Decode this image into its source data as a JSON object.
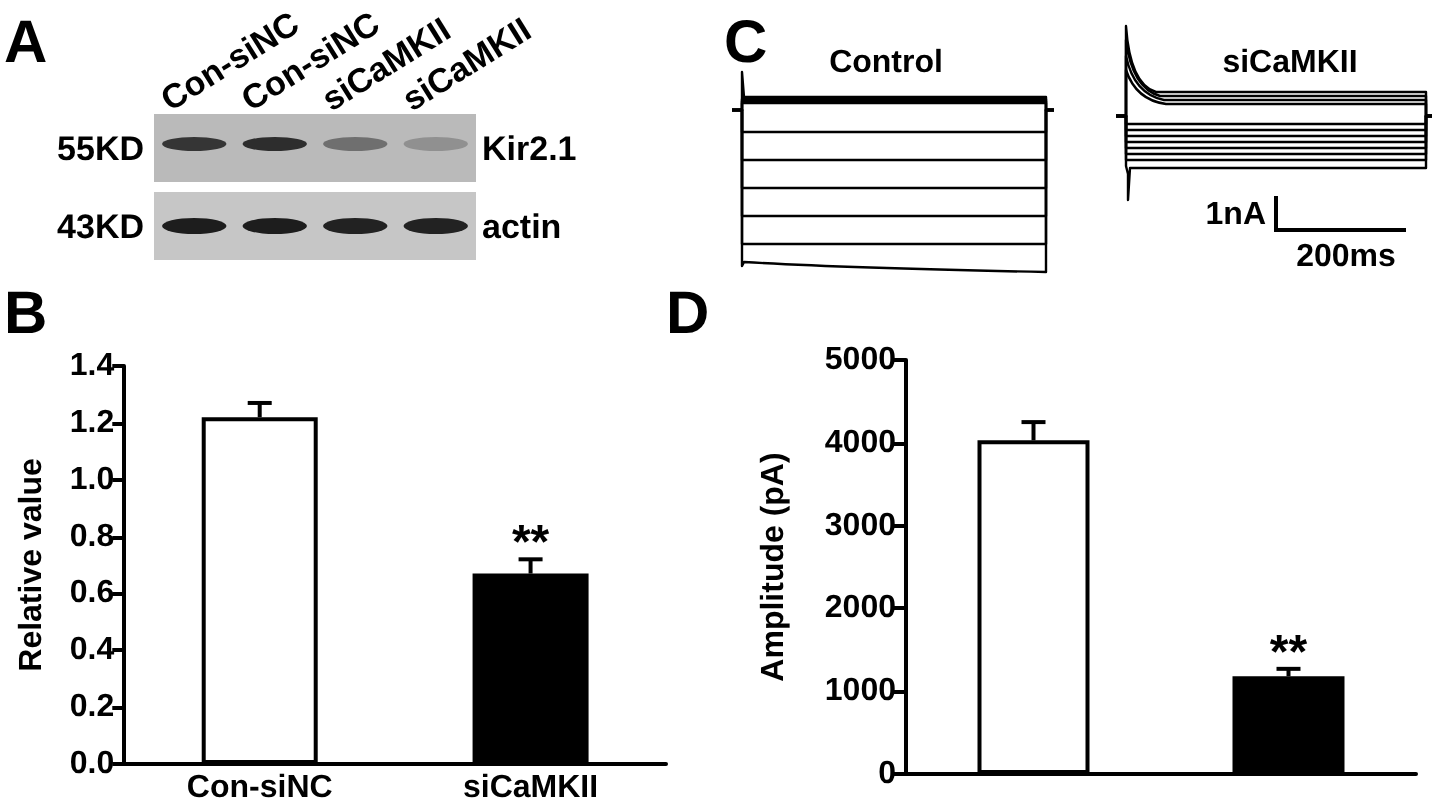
{
  "chart_data": [
    {
      "type": "other",
      "title": "A",
      "categories": [
        "Con-siNC",
        "Con-siNC",
        "siCaMKII",
        "siCaMKII"
      ],
      "y_categories": [
        "55KD",
        "43KD"
      ],
      "y2_categories": [
        "Kir2.1",
        "actin"
      ]
    },
    {
      "type": "other",
      "title": "C",
      "categories": [
        "Control",
        "siCaMKII"
      ],
      "annotations": [
        "1nA",
        "200ms"
      ]
    },
    {
      "type": "bar",
      "title": "B",
      "ylabel": "Relative value",
      "categories": [
        "Con-siNC",
        "siCaMKII"
      ],
      "values": [
        1.22,
        0.67
      ],
      "colors": [
        "#ffffff",
        "#000000"
      ],
      "errors": [
        [
          1.22,
          1.27
        ],
        [
          0.67,
          0.72
        ]
      ],
      "ylim": [
        0,
        1.4
      ],
      "yticks": [
        {
          "value": 0,
          "label": "0.0"
        },
        0.2,
        0.4,
        0.6,
        0.8,
        {
          "value": 1,
          "label": "1.0"
        },
        1.2,
        1.4
      ],
      "annotations": [
        "**"
      ]
    },
    {
      "type": "bar",
      "title": "D",
      "ylabel": "Amplitude (pA)",
      "categories": [
        null,
        null
      ],
      "values": [
        4030,
        1180
      ],
      "colors": [
        "#ffffff",
        "#000000"
      ],
      "errors": [
        [
          4030,
          4250
        ],
        [
          1180,
          1270
        ]
      ],
      "ylim": [
        0,
        5000
      ],
      "yticks": [
        0,
        1000,
        2000,
        3000,
        4000,
        5000
      ],
      "annotations": [
        "**"
      ]
    }
  ]
}
